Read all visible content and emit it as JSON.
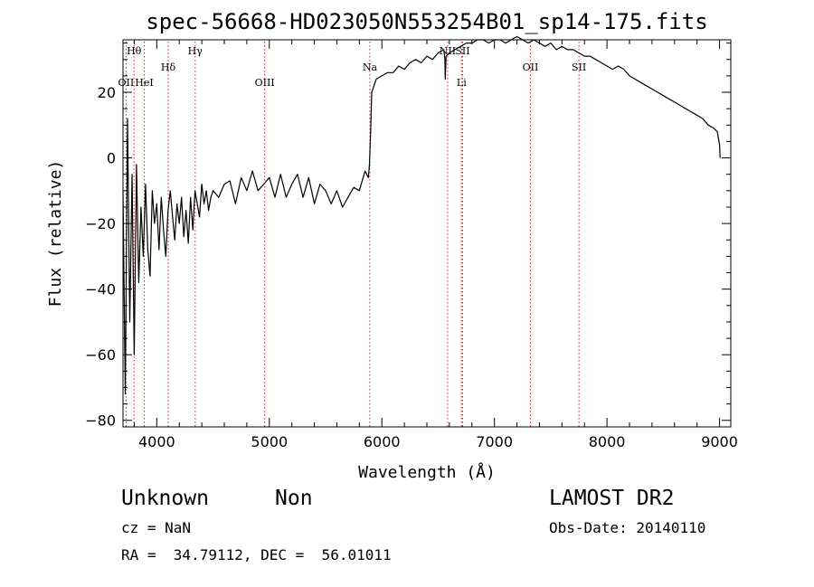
{
  "chart_data": {
    "type": "line",
    "title": "spec-56668-HD023050N553254B01_sp14-175.fits",
    "xlabel": "Wavelength (Å)",
    "ylabel": "Flux (relative)",
    "xlim": [
      3700,
      9100
    ],
    "ylim": [
      -82,
      36
    ],
    "xticks": [
      4000,
      5000,
      6000,
      7000,
      8000,
      9000
    ],
    "yticks": [
      -80,
      -60,
      -40,
      -20,
      0,
      20
    ],
    "grid": false,
    "series": [
      {
        "x": [
          3700,
          3720,
          3740,
          3760,
          3780,
          3800,
          3820,
          3840,
          3860,
          3880,
          3900,
          3920,
          3940,
          3960,
          3980,
          4000,
          4020,
          4040,
          4060,
          4080,
          4100,
          4120,
          4140,
          4160,
          4180,
          4200,
          4220,
          4240,
          4260,
          4280,
          4300,
          4320,
          4340,
          4360,
          4380,
          4400,
          4420,
          4440,
          4460,
          4480,
          4500,
          4550,
          4600,
          4650,
          4700,
          4750,
          4800,
          4850,
          4900,
          4950,
          5000,
          5050,
          5100,
          5150,
          5200,
          5250,
          5300,
          5350,
          5400,
          5450,
          5500,
          5550,
          5600,
          5650,
          5700,
          5750,
          5800,
          5850,
          5880,
          5890,
          5900,
          5910,
          5920,
          5930,
          5950,
          6000,
          6050,
          6100,
          6150,
          6200,
          6250,
          6300,
          6350,
          6400,
          6450,
          6500,
          6550,
          6560,
          6563,
          6570,
          6600,
          6650,
          6700,
          6750,
          6800,
          6850,
          6900,
          6950,
          7000,
          7050,
          7100,
          7150,
          7200,
          7250,
          7300,
          7350,
          7400,
          7450,
          7500,
          7550,
          7600,
          7650,
          7700,
          7750,
          7800,
          7850,
          7900,
          7950,
          8000,
          8050,
          8100,
          8150,
          8200,
          8250,
          8300,
          8350,
          8400,
          8450,
          8500,
          8550,
          8600,
          8650,
          8700,
          8750,
          8800,
          8850,
          8900,
          8950,
          8980,
          9000,
          9005
        ],
        "y": [
          -10,
          -72,
          12,
          -50,
          -5,
          -60,
          -2,
          -38,
          -15,
          -30,
          -8,
          -28,
          -36,
          -10,
          -20,
          -14,
          -28,
          -12,
          -22,
          -30,
          -16,
          -10,
          -18,
          -25,
          -14,
          -20,
          -12,
          -24,
          -16,
          -26,
          -12,
          -22,
          -10,
          -14,
          -18,
          -8,
          -14,
          -10,
          -16,
          -12,
          -10,
          -12,
          -8,
          -7,
          -14,
          -6,
          -10,
          -4,
          -10,
          -8,
          -6,
          -12,
          -5,
          -12,
          -8,
          -5,
          -12,
          -6,
          -14,
          -8,
          -10,
          -14,
          -10,
          -15,
          -12,
          -9,
          -10,
          -4,
          -6,
          -2,
          8,
          20,
          21,
          22,
          24,
          25,
          26,
          26,
          28,
          27,
          29,
          30,
          29,
          31,
          30,
          32,
          33,
          30,
          24,
          31,
          32,
          33,
          34,
          35,
          35,
          36,
          36,
          35,
          36,
          36,
          35,
          36,
          37,
          36,
          35,
          36,
          35,
          34,
          35,
          33,
          34,
          33,
          33,
          32,
          31,
          31,
          30,
          29,
          28,
          27,
          28,
          27,
          25,
          24,
          23,
          22,
          21,
          20,
          19,
          18,
          17,
          16,
          15,
          14,
          13,
          12,
          10,
          9,
          8,
          4,
          0
        ]
      }
    ],
    "lines": [
      {
        "label": "OII",
        "x": 3727,
        "row": 2
      },
      {
        "label": "Hθ",
        "x": 3798,
        "row": 0
      },
      {
        "label": "HeI",
        "x": 3889,
        "row": 2
      },
      {
        "label": "Hδ",
        "x": 4102,
        "row": 1
      },
      {
        "label": "Hγ",
        "x": 4341,
        "row": 0
      },
      {
        "label": "OIII",
        "x": 4959,
        "row": 2
      },
      {
        "label": "Na",
        "x": 5893,
        "row": 1
      },
      {
        "label": "NII",
        "x": 6584,
        "row": 0
      },
      {
        "label": "SII",
        "x": 6717,
        "row": 0
      },
      {
        "label": "Li",
        "x": 6708,
        "row": 2
      },
      {
        "label": "OII",
        "x": 7320,
        "row": 1
      },
      {
        "label": "SII",
        "x": 7751,
        "row": 1
      }
    ]
  },
  "info": {
    "object_type": "Unknown",
    "object_class": "Non",
    "survey": "LAMOST DR2",
    "cz": "cz = NaN",
    "obs_date": "Obs-Date: 20140110",
    "coords": "RA =  34.79112, DEC =  56.01011"
  }
}
